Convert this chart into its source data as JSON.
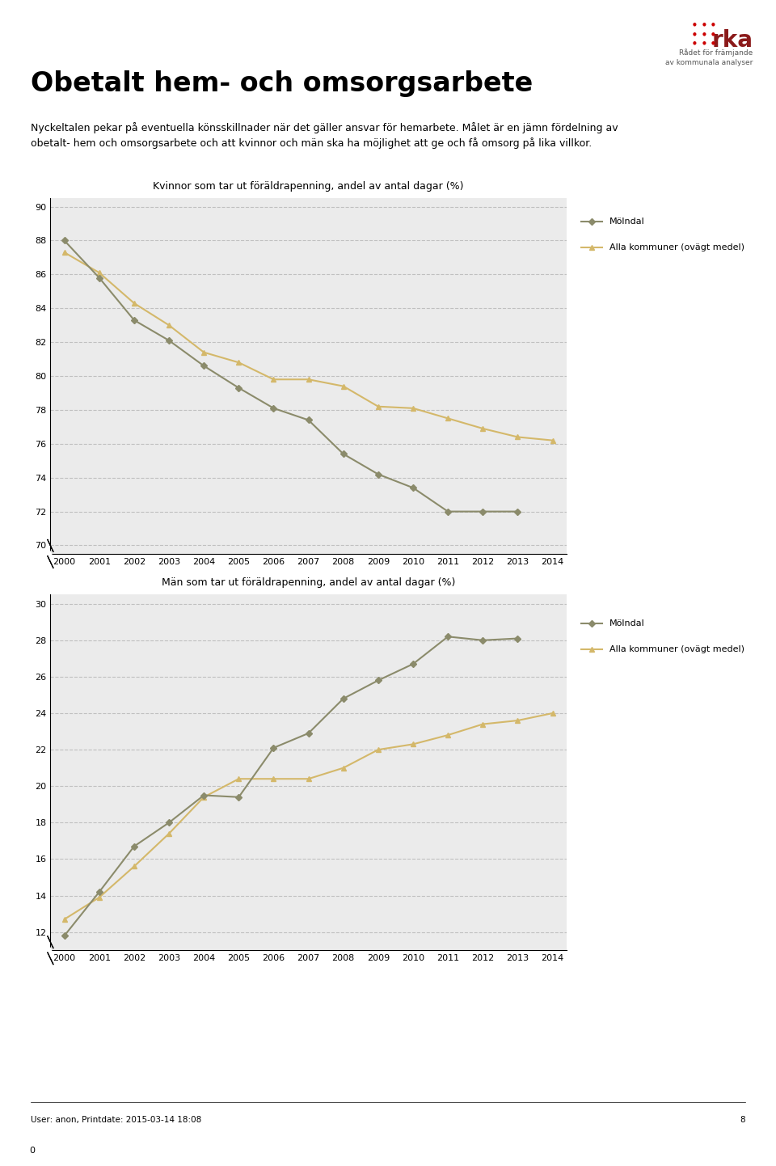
{
  "title": "Obetalt hem- och omsorgsarbete",
  "subtitle1": "Nyckeltalen pekar på eventuella könsskillnader när det gäller ansvar för hemarbete. Målet är en jämn fördelning av",
  "subtitle2": "obetalt- hem och omsorgsarbete och att kvinnor och män ska ha möjlighet att ge och få omsorg på lika villkor.",
  "chart1_title": "Kvinnor som tar ut föräldrapenning, andel av antal dagar (%)",
  "chart2_title": "Män som tar ut föräldrapenning, andel av antal dagar (%)",
  "years": [
    2000,
    2001,
    2002,
    2003,
    2004,
    2005,
    2006,
    2007,
    2008,
    2009,
    2010,
    2011,
    2012,
    2013,
    2014
  ],
  "women_molndal": [
    88.0,
    85.8,
    83.3,
    82.1,
    80.6,
    79.3,
    78.1,
    77.4,
    75.4,
    74.2,
    73.4,
    72.0,
    72.0,
    72.0,
    null
  ],
  "women_alla": [
    87.3,
    86.1,
    84.3,
    83.0,
    81.4,
    80.8,
    79.8,
    79.8,
    79.4,
    78.2,
    78.1,
    77.5,
    76.9,
    76.4,
    76.2
  ],
  "men_molndal": [
    11.8,
    14.2,
    16.7,
    18.0,
    19.5,
    19.4,
    22.1,
    22.9,
    24.8,
    25.8,
    26.7,
    28.2,
    28.0,
    28.1,
    null
  ],
  "men_alla": [
    12.7,
    13.9,
    15.6,
    17.4,
    19.4,
    20.4,
    20.4,
    20.4,
    21.0,
    22.0,
    22.3,
    22.8,
    23.4,
    23.6,
    24.0
  ],
  "molndal_color": "#8b8b6b",
  "alla_color": "#d4b86a",
  "background_color": "#ebebeb",
  "legend_molndal": "Mölndal",
  "legend_alla": "Alla kommuner (ovägt medel)",
  "footer": "User: anon, Printdate: 2015-03-14 18:08",
  "page_num": "8",
  "logo_text": "rka",
  "logo_subtext": "Rådet för främjande\nav kommunala analyser"
}
